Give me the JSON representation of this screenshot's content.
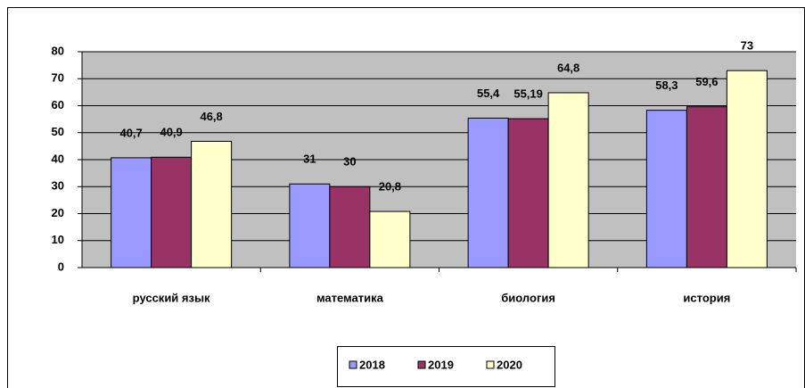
{
  "chart_data": {
    "type": "bar",
    "categories": [
      "русский язык",
      "математика",
      "биология",
      "история"
    ],
    "series": [
      {
        "name": "2018",
        "color": "#9999ff",
        "values": [
          40.7,
          31,
          55.4,
          58.3
        ],
        "value_labels": [
          "40,7",
          "31",
          "55,4",
          "58,3"
        ]
      },
      {
        "name": "2019",
        "color": "#993366",
        "values": [
          40.9,
          30,
          55.19,
          59.6
        ],
        "value_labels": [
          "40,9",
          "30",
          "55,19",
          "59,6"
        ]
      },
      {
        "name": "2020",
        "color": "#ffffcc",
        "values": [
          46.8,
          20.8,
          64.8,
          73
        ],
        "value_labels": [
          "46,8",
          "20,8",
          "64,8",
          "73"
        ]
      }
    ],
    "ylim": [
      0,
      80
    ],
    "yticks": [
      0,
      10,
      20,
      30,
      40,
      50,
      60,
      70,
      80
    ],
    "grid": true,
    "legend": "bottom"
  }
}
